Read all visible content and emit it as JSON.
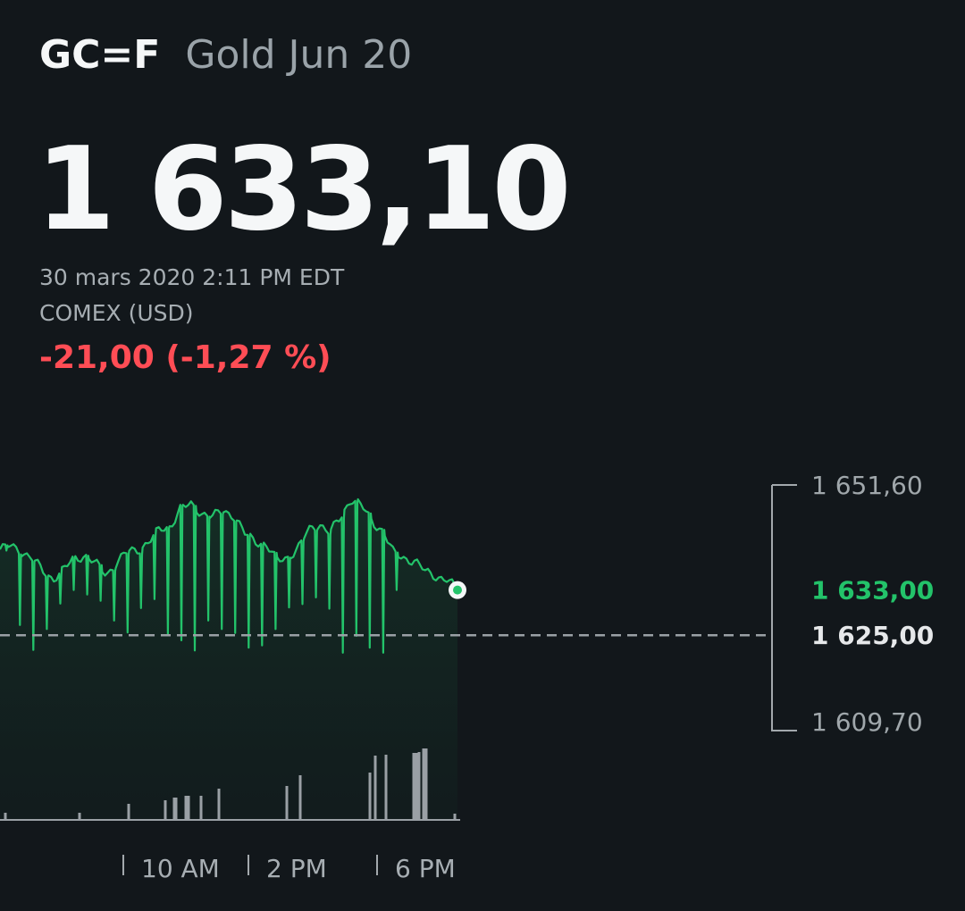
{
  "quote": {
    "symbol": "GC=F",
    "name": "Gold Jun 20",
    "price": "1 633,10",
    "timestamp": "30 mars 2020 2:11 PM EDT",
    "exchange": "COMEX (USD)",
    "change": "-21,00 (-1,27 %)"
  },
  "colors": {
    "background": "#12171b",
    "line": "#23c36a",
    "negative": "#ff4d55",
    "volume": "#9aa0a5",
    "reference": "#9aa0a5"
  },
  "chart_data": {
    "type": "line",
    "x_ticks": [
      "10 AM",
      "2 PM",
      "6 PM"
    ],
    "y_labels": {
      "high": "1 651,60",
      "current": "1 633,00",
      "reference": "1 625,00",
      "low": "1 609,70"
    },
    "ylim": [
      1609.7,
      1651.6
    ],
    "reference_value": 1625.0,
    "last_value": 1633.0,
    "series": [
      {
        "values": [
          1640.2,
          1640.8,
          1639.9,
          1638.6,
          1636.4,
          1635.0,
          1636.6,
          1638.7,
          1639.1,
          1637.6,
          1635.8,
          1637.9,
          1639.8,
          1640.2,
          1641.5,
          1643.7,
          1644.3,
          1647.5,
          1648.1,
          1646.6,
          1645.9,
          1647.2,
          1646.1,
          1642.9,
          1641.8,
          1641.0,
          1638.2,
          1638.8,
          1640.3,
          1643.6,
          1644.8,
          1643.1,
          1645.8,
          1649.3,
          1647.8,
          1645.1,
          1643.5,
          1639.4,
          1638.7,
          1638.1,
          1636.2,
          1635.5,
          1634.8,
          1633.0
        ],
        "dips": [
          1640.0,
          1626.8,
          1622.4,
          1626.1,
          1630.6,
          1633.0,
          1632.2,
          1631.1,
          1627.6,
          1625.5,
          1629.8,
          1631.4,
          1625.1,
          1624.1,
          1622.3,
          1627.6,
          1626.1,
          1625.4,
          1622.8,
          1623.2,
          1626.1,
          1629.9,
          1630.5,
          1631.7,
          1629.7,
          1621.9,
          1624.9,
          1622.8,
          1621.9,
          1633.0
        ]
      }
    ],
    "volume": [
      8,
      8,
      18,
      22,
      25,
      25,
      27,
      27,
      27,
      35,
      38,
      50,
      53,
      72,
      73,
      75,
      75,
      76,
      80,
      80,
      7
    ]
  }
}
